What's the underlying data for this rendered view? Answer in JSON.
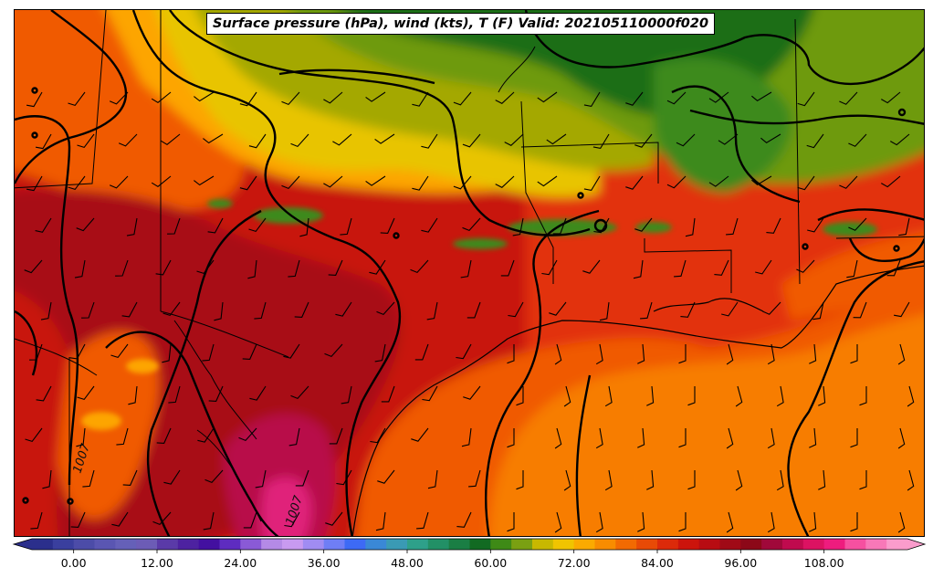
{
  "title": "Surface pressure (hPa), wind (kts), T (F) Valid: 202105110000f020",
  "colors": {
    "very_hot": "#a80a18",
    "hot": "#c8140a",
    "warm_red": "#e23208",
    "orange_red": "#f05a05",
    "orange": "#f77d00",
    "light_orange": "#fda500",
    "yellow": "#e8c400",
    "olive": "#a4a800",
    "yellow_green": "#6e9a10",
    "green": "#3c8a1a",
    "dark_green": "#1c6e14",
    "magenta": "#b8104a",
    "pink": "#e0207a"
  },
  "colorbar": {
    "ticks": [
      "0.00",
      "12.00",
      "24.00",
      "36.00",
      "48.00",
      "60.00",
      "72.00",
      "84.00",
      "96.00",
      "108.00"
    ],
    "min": -6,
    "max": 120,
    "bins": [
      {
        "from": -6,
        "to": -3,
        "color": "#2b2f8c"
      },
      {
        "from": -3,
        "to": 0,
        "color": "#3a3f9e"
      },
      {
        "from": 0,
        "to": 3,
        "color": "#4c4ca8"
      },
      {
        "from": 3,
        "to": 6,
        "color": "#5a56b2"
      },
      {
        "from": 6,
        "to": 9,
        "color": "#6560b8"
      },
      {
        "from": 9,
        "to": 12,
        "color": "#6c5cb6"
      },
      {
        "from": 12,
        "to": 15,
        "color": "#5a3aa8"
      },
      {
        "from": 15,
        "to": 18,
        "color": "#4d22a0"
      },
      {
        "from": 18,
        "to": 21,
        "color": "#4310a0"
      },
      {
        "from": 21,
        "to": 24,
        "color": "#5e2cc0"
      },
      {
        "from": 24,
        "to": 27,
        "color": "#8a5ad6"
      },
      {
        "from": 27,
        "to": 30,
        "color": "#b48ae6"
      },
      {
        "from": 30,
        "to": 33,
        "color": "#c89af0"
      },
      {
        "from": 33,
        "to": 36,
        "color": "#a08cf2"
      },
      {
        "from": 36,
        "to": 39,
        "color": "#6f7ef5"
      },
      {
        "from": 39,
        "to": 42,
        "color": "#3d6af5"
      },
      {
        "from": 42,
        "to": 45,
        "color": "#3a88d6"
      },
      {
        "from": 45,
        "to": 48,
        "color": "#3a9ab4"
      },
      {
        "from": 48,
        "to": 51,
        "color": "#2ea08a"
      },
      {
        "from": 51,
        "to": 54,
        "color": "#229066"
      },
      {
        "from": 54,
        "to": 57,
        "color": "#1a7e44"
      },
      {
        "from": 57,
        "to": 60,
        "color": "#126a22"
      },
      {
        "from": 60,
        "to": 63,
        "color": "#3e8a16"
      },
      {
        "from": 63,
        "to": 66,
        "color": "#7aa012"
      },
      {
        "from": 66,
        "to": 69,
        "color": "#c8b800"
      },
      {
        "from": 69,
        "to": 72,
        "color": "#f0c400"
      },
      {
        "from": 72,
        "to": 75,
        "color": "#fbaa00"
      },
      {
        "from": 75,
        "to": 78,
        "color": "#f88c00"
      },
      {
        "from": 78,
        "to": 81,
        "color": "#f26a02"
      },
      {
        "from": 81,
        "to": 84,
        "color": "#e84a06"
      },
      {
        "from": 84,
        "to": 87,
        "color": "#dc2a0a"
      },
      {
        "from": 87,
        "to": 90,
        "color": "#cc140c"
      },
      {
        "from": 90,
        "to": 93,
        "color": "#b80c12"
      },
      {
        "from": 93,
        "to": 96,
        "color": "#a00a16"
      },
      {
        "from": 96,
        "to": 99,
        "color": "#8c0818"
      },
      {
        "from": 99,
        "to": 102,
        "color": "#a0083a"
      },
      {
        "from": 102,
        "to": 105,
        "color": "#c00a4e"
      },
      {
        "from": 105,
        "to": 108,
        "color": "#dc1262"
      },
      {
        "from": 108,
        "to": 111,
        "color": "#ee1c7e"
      },
      {
        "from": 111,
        "to": 114,
        "color": "#f650a0"
      },
      {
        "from": 114,
        "to": 117,
        "color": "#f878b8"
      },
      {
        "from": 117,
        "to": 120,
        "color": "#fa9ccc"
      }
    ],
    "extend": "both"
  },
  "contour_labels": [
    "1007",
    "1007"
  ]
}
